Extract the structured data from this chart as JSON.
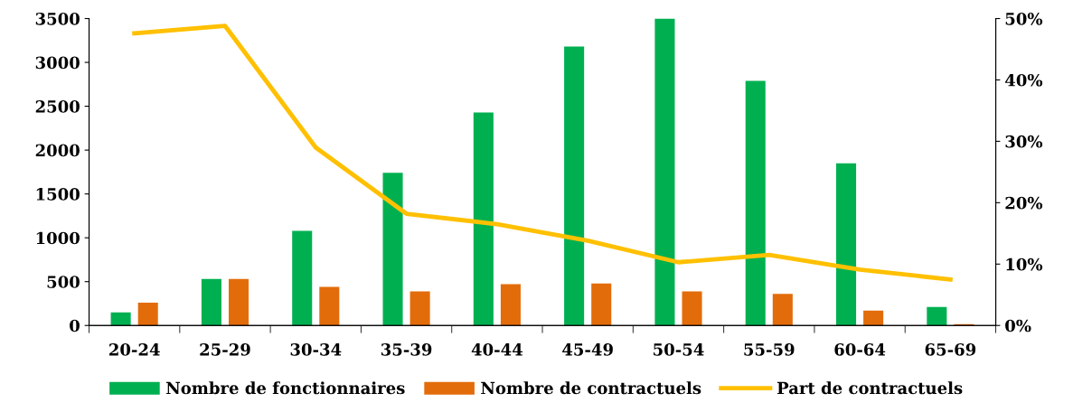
{
  "chart_data": {
    "type": "bar",
    "categories": [
      "20-24",
      "25-29",
      "30-34",
      "35-39",
      "40-44",
      "45-49",
      "50-54",
      "55-59",
      "60-64",
      "65-69"
    ],
    "series": [
      {
        "name": "Nombre de fonctionnaires",
        "color": "#00b050",
        "values": [
          150,
          530,
          1080,
          1740,
          2430,
          3180,
          3500,
          2790,
          1850,
          210
        ]
      },
      {
        "name": "Nombre de contractuels",
        "color": "#e36c0a",
        "values": [
          260,
          530,
          440,
          390,
          470,
          480,
          390,
          360,
          170,
          15
        ]
      },
      {
        "name": "Part de contractuels",
        "color": "#ffc000",
        "type": "line",
        "axis": "y2",
        "values": [
          47.6,
          48.8,
          29.0,
          18.2,
          16.5,
          13.8,
          10.3,
          11.5,
          9.1,
          7.5
        ]
      }
    ],
    "ylim": [
      0,
      3500
    ],
    "yticks": [
      0,
      500,
      1000,
      1500,
      2000,
      2500,
      3000,
      3500
    ],
    "y2lim": [
      0,
      50
    ],
    "y2ticks": [
      {
        "value": 0,
        "label": "0%"
      },
      {
        "value": 10,
        "label": "10%"
      },
      {
        "value": 20,
        "label": "20%"
      },
      {
        "value": 30,
        "label": "30%"
      },
      {
        "value": 40,
        "label": "40%"
      },
      {
        "value": 50,
        "label": "50%"
      }
    ],
    "grid": false,
    "legend": "bottom",
    "marker": "none"
  }
}
